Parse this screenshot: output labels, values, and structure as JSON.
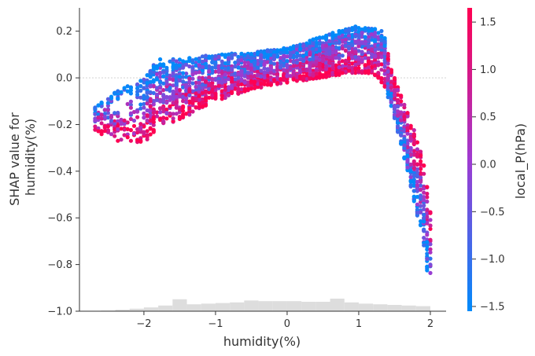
{
  "chart_data": {
    "type": "scatter",
    "xlabel": "humidity(%)",
    "ylabel": [
      "SHAP value for",
      "humidity(%)"
    ],
    "xlim": [
      -2.9,
      2.22
    ],
    "ylim": [
      -1.0,
      0.3
    ],
    "xticks": [
      -2,
      -1,
      0,
      1,
      2
    ],
    "xtick_labels": [
      "−2",
      "−1",
      "0",
      "1",
      "2"
    ],
    "yticks": [
      0.2,
      0.0,
      -0.2,
      -0.4,
      -0.6,
      -0.8,
      -1.0
    ],
    "ytick_labels": [
      "0.2",
      "0.0",
      "−0.2",
      "−0.4",
      "−0.6",
      "−0.8",
      "−1.0"
    ],
    "zero_line": true,
    "colorbar": {
      "label": "local_P(hPa)",
      "range": [
        -1.55,
        1.65
      ],
      "ticks": [
        1.5,
        1.0,
        0.5,
        0.0,
        -0.5,
        -1.0,
        -1.5
      ],
      "tick_labels": [
        "1.5",
        "1.0",
        "0.5",
        "0.0",
        "−0.5",
        "−1.0",
        "−1.5"
      ],
      "low_color": "#008bfb",
      "mid_color": "#9f3ad1",
      "high_color": "#ff0051"
    },
    "trend": {
      "x": [
        -2.7,
        -2.4,
        -2.0,
        -1.8,
        -1.5,
        -1.0,
        -0.5,
        0.0,
        0.5,
        0.9,
        1.2,
        1.35,
        1.45,
        1.6,
        1.75,
        1.9,
        2.0
      ],
      "y": [
        -0.17,
        -0.14,
        -0.1,
        -0.06,
        -0.02,
        0.02,
        0.04,
        0.05,
        0.09,
        0.13,
        0.13,
        0.1,
        -0.04,
        -0.18,
        -0.3,
        -0.5,
        -0.72
      ],
      "upper": [
        -0.13,
        -0.06,
        0.0,
        0.08,
        0.08,
        0.1,
        0.11,
        0.13,
        0.18,
        0.22,
        0.22,
        0.2,
        0.04,
        -0.08,
        -0.2,
        -0.35,
        -0.55
      ],
      "lower": [
        -0.23,
        -0.27,
        -0.28,
        -0.22,
        -0.18,
        -0.1,
        -0.05,
        -0.02,
        0.0,
        0.02,
        0.02,
        -0.03,
        -0.12,
        -0.3,
        -0.5,
        -0.7,
        -0.93
      ]
    },
    "histogram": {
      "bin_centers": [
        -2.5,
        -2.3,
        -2.1,
        -1.9,
        -1.7,
        -1.5,
        -1.3,
        -1.1,
        -0.9,
        -0.7,
        -0.5,
        -0.3,
        -0.1,
        0.1,
        0.3,
        0.5,
        0.7,
        0.9,
        1.1,
        1.3,
        1.5,
        1.7,
        1.9
      ],
      "relative_heights": [
        0.05,
        0.12,
        0.2,
        0.3,
        0.45,
        0.95,
        0.55,
        0.6,
        0.65,
        0.7,
        0.85,
        0.8,
        0.8,
        0.8,
        0.75,
        0.75,
        1.0,
        0.7,
        0.6,
        0.55,
        0.5,
        0.45,
        0.4
      ]
    }
  }
}
